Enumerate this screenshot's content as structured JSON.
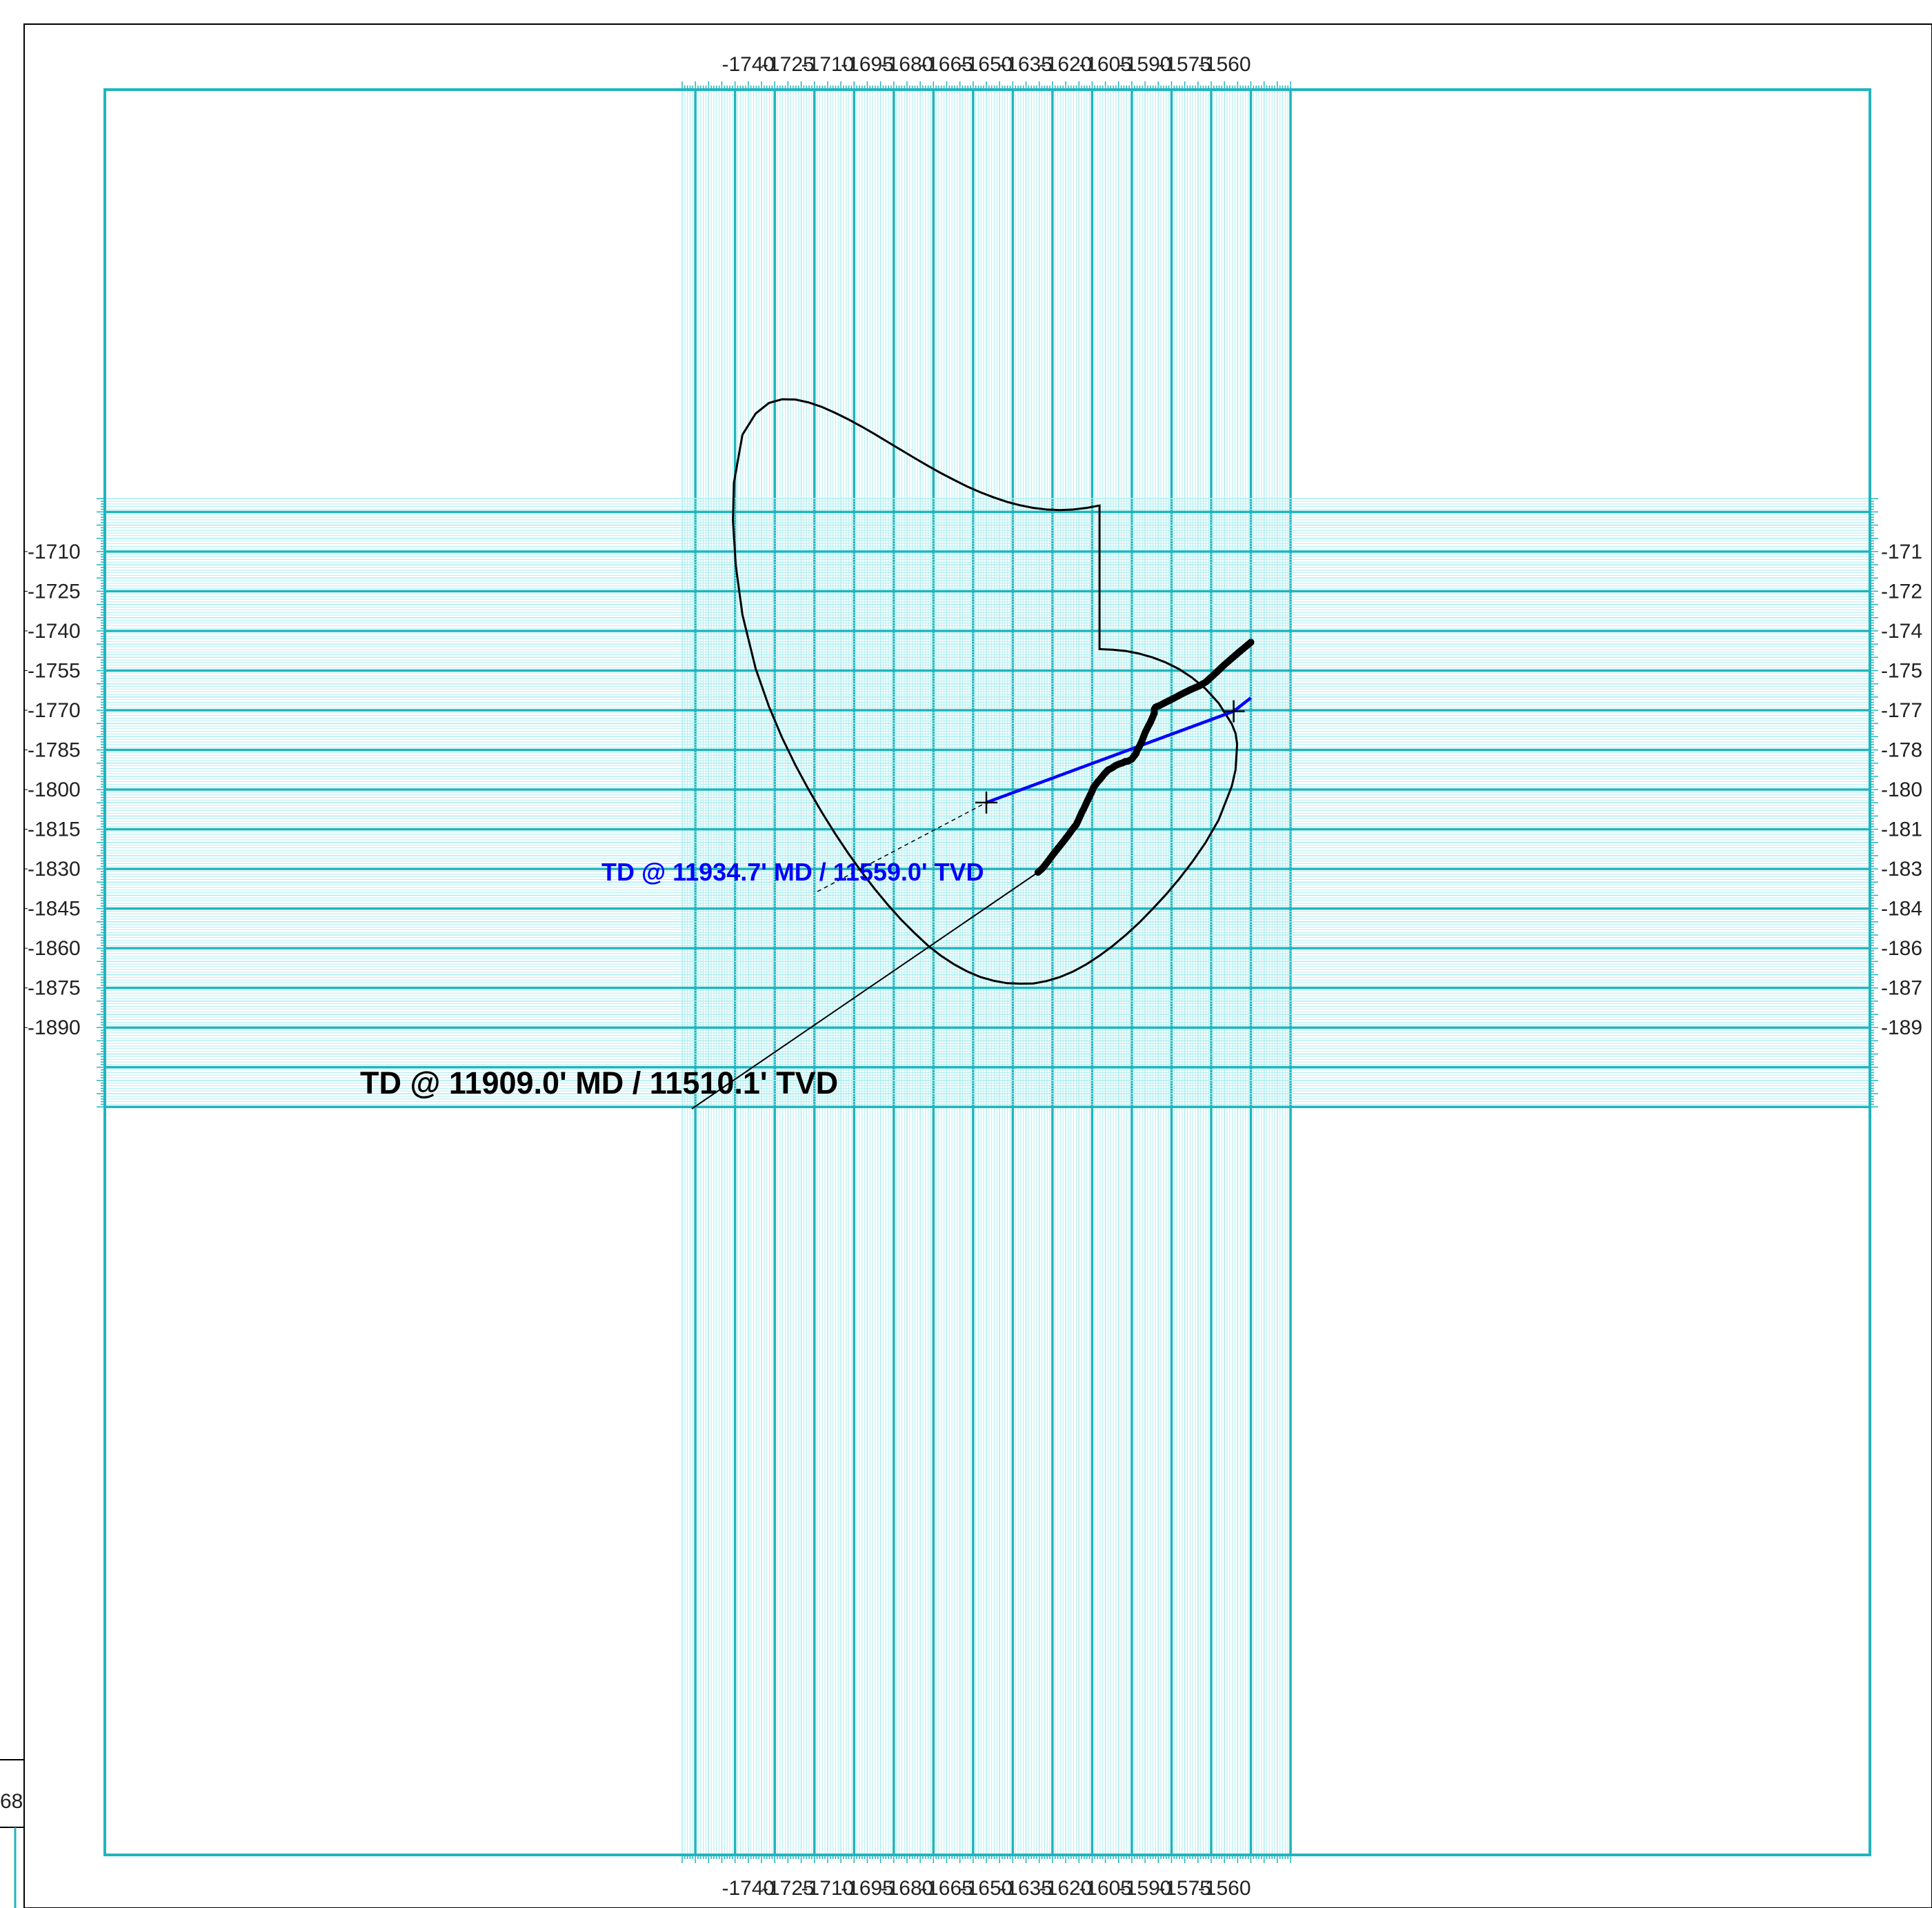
{
  "chart_data": {
    "type": "line",
    "title": "",
    "xlabel": "",
    "ylabel": "",
    "xlim": [
      -1750,
      -1550
    ],
    "ylim": [
      -1900,
      -1700
    ],
    "grid": true,
    "x_ticks": [
      "-1740",
      "-1725",
      "-1710",
      "-1695",
      "-1680",
      "-1665",
      "-1650",
      "-1635",
      "-1620",
      "-1605",
      "-1590",
      "-1575",
      "-1560"
    ],
    "y_ticks": [
      "-1710",
      "-1725",
      "-1740",
      "-1755",
      "-1770",
      "-1785",
      "-1800",
      "-1815",
      "-1830",
      "-1845",
      "-1860",
      "-1875",
      "-1890"
    ],
    "y_ticks_right": [
      "-171",
      "-172",
      "-174",
      "-175",
      "-177",
      "-178",
      "-180",
      "-181",
      "-183",
      "-184",
      "-186",
      "-187",
      "-189"
    ],
    "stray_label": "68",
    "colors": {
      "grid_major": "#1fb5bd",
      "grid_minor": "#aeeef0",
      "actual": "#000000",
      "planned": "#0000ff",
      "ellipse": "#000000"
    },
    "series": [
      {
        "key": "actual",
        "x": [
          -1550,
          -1555,
          -1560,
          -1564,
          -1567,
          -1569.5,
          -1573,
          -1576,
          -1579,
          -1582,
          -1584.5,
          -1586,
          -1586.5,
          -1586.5,
          -1587,
          -1588,
          -1589,
          -1590,
          -1590.5,
          -1591,
          -1591.5,
          -1592,
          -1593,
          -1593.5,
          -1595,
          -1596.5,
          -1597.5,
          -1598.5,
          -1599.5,
          -1601,
          -1602.5,
          -1604,
          -1605.5,
          -1607,
          -1608,
          -1608.5,
          -1609.5,
          -1610,
          -1611,
          -1612,
          -1613,
          -1614,
          -1615,
          -1616,
          -1617.5,
          -1619,
          -1620,
          -1621,
          -1623,
          -1625,
          -1626,
          -1627,
          -1628,
          -1629,
          -1630.5
        ],
        "y": [
          -1744.3,
          -1748.5,
          -1752.8,
          -1756.6,
          -1759.3,
          -1760.8,
          -1762.3,
          -1763.8,
          -1765.4,
          -1766.9,
          -1768.2,
          -1768.8,
          -1769.6,
          -1771.1,
          -1772.3,
          -1774.6,
          -1776.5,
          -1778.5,
          -1779.8,
          -1781.1,
          -1782.3,
          -1783.4,
          -1785.2,
          -1786.5,
          -1788.5,
          -1789.3,
          -1789.4,
          -1789.9,
          -1790.2,
          -1790.8,
          -1791.8,
          -1792.6,
          -1794.2,
          -1796.1,
          -1797.2,
          -1797.9,
          -1799.2,
          -1800.6,
          -1802.6,
          -1804.7,
          -1806.9,
          -1808.8,
          -1811.1,
          -1813.2,
          -1815.1,
          -1817.2,
          -1818.5,
          -1819.8,
          -1822.3,
          -1824.8,
          -1826.2,
          -1827.5,
          -1828.8,
          -1830,
          -1831.3
        ]
      },
      {
        "key": "planned",
        "x": [
          -1550,
          -1556.5,
          -1650
        ],
        "y": [
          -1765.3,
          -1770.4,
          -1804.9
        ]
      }
    ],
    "ellipse": {
      "x": [
        -1607.2,
        -1602.2,
        -1597.2,
        -1592.2,
        -1587.2,
        -1582.2,
        -1577.2,
        -1572.2,
        -1567.2,
        -1562.2,
        -1557.2,
        -1555.8,
        -1555.2,
        -1555.8,
        -1557.2,
        -1562.2,
        -1567.2,
        -1572.2,
        -1577.2,
        -1582.2,
        -1587.2,
        -1592.2,
        -1597.2,
        -1602.2,
        -1607.2,
        -1612.2,
        -1617.2,
        -1622.2,
        -1627.2,
        -1632.2,
        -1637.2,
        -1642.2,
        -1647.2,
        -1652.2,
        -1657.2,
        -1662.2,
        -1667.2,
        -1672.2,
        -1677.2,
        -1682.2,
        -1687.2,
        -1692.2,
        -1697.2,
        -1702.2,
        -1707.2,
        -1712.2,
        -1717.2,
        -1722.2,
        -1727.2,
        -1732.2,
        -1737.2,
        -1742.2,
        -1744.7,
        -1745.8,
        -1745.4,
        -1742.2,
        -1737.2,
        -1732.2,
        -1727.2,
        -1722.2,
        -1717.2,
        -1712.2,
        -1707.2,
        -1702.2,
        -1697.2,
        -1692.2,
        -1687.2,
        -1682.2,
        -1677.2,
        -1672.2,
        -1667.2,
        -1662.2,
        -1657.2,
        -1652.2,
        -1647.2,
        -1642.2,
        -1637.2,
        -1632.2,
        -1627.2,
        -1622.2,
        -1617.2,
        -1612.2,
        -1607.2
      ],
      "y": [
        -1746.9,
        -1747.1,
        -1747.6,
        -1748.6,
        -1750.0,
        -1751.9,
        -1754.4,
        -1757.7,
        -1761.8,
        -1767.3,
        -1775.2,
        -1778.8,
        -1782.8,
        -1792.5,
        -1798.7,
        -1811.5,
        -1820.2,
        -1827.4,
        -1833.9,
        -1839.8,
        -1845.2,
        -1850.3,
        -1854.9,
        -1859.1,
        -1862.8,
        -1866.1,
        -1868.8,
        -1870.9,
        -1872.4,
        -1873.3,
        -1873.4,
        -1873.2,
        -1872.3,
        -1870.9,
        -1868.8,
        -1866.1,
        -1862.8,
        -1858.9,
        -1854.2,
        -1849.2,
        -1843.6,
        -1837.6,
        -1831.1,
        -1824.1,
        -1816.6,
        -1808.6,
        -1800.0,
        -1790.7,
        -1780.4,
        -1768.6,
        -1754.3,
        -1733.9,
        -1715.4,
        -1698.2,
        -1683.9,
        -1665.8,
        -1657.8,
        -1653.8,
        -1652.4,
        -1652.5,
        -1653.6,
        -1655.3,
        -1657.5,
        -1660.0,
        -1662.7,
        -1665.6,
        -1668.6,
        -1671.6,
        -1674.6,
        -1677.5,
        -1680.3,
        -1682.9,
        -1685.4,
        -1687.6,
        -1689.5,
        -1691.2,
        -1692.5,
        -1693.5,
        -1694.1,
        -1694.3,
        -1694.1,
        -1693.5,
        -1692.6
      ]
    },
    "markers": [
      {
        "key": "planned-td",
        "x": -1650,
        "y": -1804.9
      },
      {
        "key": "intercept",
        "x": -1556.5,
        "y": -1770.4
      }
    ],
    "annotations": [
      {
        "key": "actual-td",
        "text": "TD @ 11909.0' MD / 11510.1' TVD",
        "x": -1630.5,
        "y": -1831.3
      },
      {
        "key": "planned-td",
        "text": "TD @ 11934.7' MD / 11559.0' TVD",
        "x": -1650,
        "y": -1804.9
      }
    ]
  }
}
